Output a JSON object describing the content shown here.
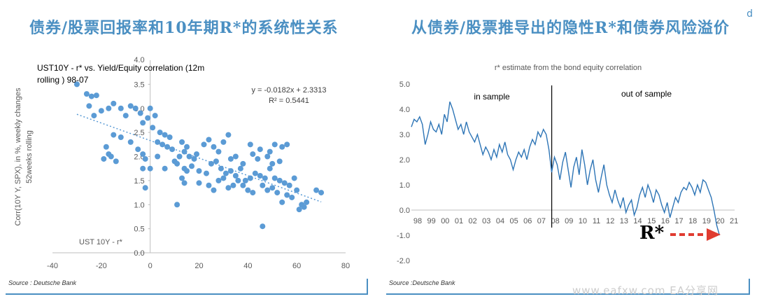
{
  "headings": {
    "left": "债券/股票回报率和10年期R*的系统性关系",
    "right": "从债券/股票推导出的隐性R*和债券风险溢价",
    "corner_mark": "d"
  },
  "sources": {
    "left": "Source : Deutsche Bank",
    "right": "Source :Deutsche Bank"
  },
  "watermark": "www.eafxw.com  EA分享网",
  "annotations": {
    "rstar_label": "R*",
    "arrow_color": "#e03c31"
  },
  "chart_data": [
    {
      "type": "scatter",
      "title": "UST10Y - r* vs. Yield/Equity correlation (12m rolling ) 98-07",
      "xlabel": "UST 10Y - r*",
      "ylabel": "Corr(10Y Y, SPX), in %, weekly changes 52weeks rolling",
      "xlim": [
        -40,
        80
      ],
      "ylim": [
        0,
        4
      ],
      "xticks": [
        -40,
        -20,
        0,
        20,
        40,
        60,
        80
      ],
      "yticks": [
        0.0,
        0.5,
        1.0,
        1.5,
        2.0,
        2.5,
        3.0,
        3.5
      ],
      "ytop_label": "4.0",
      "equation": "y = -0.0182x + 2.3313",
      "r_squared": "R² = 0.5441",
      "trendline": {
        "slope": -0.0182,
        "intercept": 2.3313,
        "x_range": [
          -30,
          70
        ]
      },
      "point_color": "#5b9bd5",
      "points": [
        [
          -30,
          3.5
        ],
        [
          -26,
          3.3
        ],
        [
          -24,
          3.25
        ],
        [
          -22,
          3.27
        ],
        [
          -25,
          3.05
        ],
        [
          -23,
          2.85
        ],
        [
          -20,
          2.95
        ],
        [
          -17,
          3.0
        ],
        [
          -15,
          3.1
        ],
        [
          -12,
          3.0
        ],
        [
          -8,
          3.05
        ],
        [
          -10,
          2.85
        ],
        [
          -6,
          3.0
        ],
        [
          -4,
          2.9
        ],
        [
          -3,
          2.7
        ],
        [
          -1,
          2.8
        ],
        [
          0,
          3.0
        ],
        [
          2,
          2.85
        ],
        [
          1,
          2.6
        ],
        [
          4,
          2.5
        ],
        [
          6,
          2.45
        ],
        [
          8,
          2.4
        ],
        [
          3,
          2.3
        ],
        [
          5,
          2.25
        ],
        [
          7,
          2.2
        ],
        [
          9,
          2.15
        ],
        [
          -15,
          2.45
        ],
        [
          -12,
          2.4
        ],
        [
          -18,
          2.2
        ],
        [
          -16,
          2.0
        ],
        [
          -19,
          1.95
        ],
        [
          -14,
          1.9
        ],
        [
          -17,
          2.05
        ],
        [
          -8,
          2.3
        ],
        [
          -5,
          2.15
        ],
        [
          -3,
          2.05
        ],
        [
          -2,
          1.95
        ],
        [
          0,
          1.75
        ],
        [
          3,
          2.0
        ],
        [
          6,
          1.75
        ],
        [
          10,
          1.9
        ],
        [
          12,
          2.0
        ],
        [
          14,
          2.1
        ],
        [
          16,
          2.0
        ],
        [
          18,
          1.95
        ],
        [
          13,
          2.3
        ],
        [
          15,
          2.2
        ],
        [
          19,
          2.05
        ],
        [
          22,
          2.25
        ],
        [
          24,
          2.35
        ],
        [
          26,
          2.2
        ],
        [
          28,
          2.1
        ],
        [
          30,
          2.3
        ],
        [
          32,
          2.45
        ],
        [
          11,
          1.85
        ],
        [
          14,
          1.75
        ],
        [
          17,
          1.8
        ],
        [
          20,
          1.7
        ],
        [
          23,
          1.65
        ],
        [
          25,
          1.85
        ],
        [
          27,
          1.9
        ],
        [
          29,
          1.75
        ],
        [
          31,
          1.65
        ],
        [
          33,
          1.7
        ],
        [
          35,
          1.6
        ],
        [
          37,
          1.75
        ],
        [
          39,
          1.5
        ],
        [
          41,
          1.55
        ],
        [
          43,
          1.65
        ],
        [
          45,
          1.6
        ],
        [
          47,
          1.55
        ],
        [
          49,
          1.75
        ],
        [
          51,
          1.55
        ],
        [
          53,
          1.5
        ],
        [
          55,
          1.45
        ],
        [
          57,
          1.4
        ],
        [
          59,
          1.55
        ],
        [
          60,
          1.3
        ],
        [
          62,
          1.0
        ],
        [
          63,
          0.95
        ],
        [
          64,
          1.05
        ],
        [
          68,
          1.3
        ],
        [
          70,
          1.25
        ],
        [
          13,
          1.55
        ],
        [
          14,
          1.45
        ],
        [
          20,
          1.45
        ],
        [
          24,
          1.4
        ],
        [
          26,
          1.3
        ],
        [
          28,
          1.5
        ],
        [
          30,
          1.55
        ],
        [
          32,
          1.35
        ],
        [
          34,
          1.4
        ],
        [
          36,
          1.5
        ],
        [
          38,
          1.4
        ],
        [
          40,
          1.3
        ],
        [
          42,
          1.25
        ],
        [
          46,
          1.4
        ],
        [
          48,
          1.3
        ],
        [
          50,
          1.35
        ],
        [
          52,
          1.25
        ],
        [
          54,
          1.05
        ],
        [
          56,
          1.2
        ],
        [
          58,
          1.15
        ],
        [
          61,
          0.9
        ],
        [
          11,
          1.0
        ],
        [
          46,
          0.55
        ],
        [
          41,
          2.25
        ],
        [
          45,
          2.15
        ],
        [
          49,
          2.1
        ],
        [
          54,
          2.2
        ],
        [
          56,
          2.25
        ],
        [
          50,
          1.85
        ],
        [
          53,
          1.9
        ],
        [
          -3,
          1.75
        ],
        [
          -2,
          1.35
        ],
        [
          15,
          1.7
        ],
        [
          35,
          2.0
        ],
        [
          42,
          2.05
        ],
        [
          44,
          1.95
        ],
        [
          48,
          2.0
        ],
        [
          51,
          2.25
        ],
        [
          38,
          1.85
        ],
        [
          33,
          1.95
        ]
      ]
    },
    {
      "type": "line",
      "title": "r* estimate from the bond equity correlation",
      "xlabel": "",
      "ylabel": "",
      "xlim": [
        1998,
        2021.5
      ],
      "ylim": [
        -2.0,
        5.0
      ],
      "yticks": [
        -2.0,
        -1.0,
        0.0,
        1.0,
        2.0,
        3.0,
        4.0,
        5.0
      ],
      "ytick_labels": [
        "-2.0",
        "-1.0",
        "0.0",
        "1.0",
        "2.0",
        "3.0",
        "4.0",
        "5.0"
      ],
      "xtick_labels": [
        "98",
        "99",
        "00",
        "01",
        "02",
        "03",
        "04",
        "05",
        "06",
        "07",
        "08",
        "09",
        "10",
        "11",
        "12",
        "13",
        "14",
        "15",
        "16",
        "17",
        "18",
        "19",
        "20",
        "21"
      ],
      "sample_split": 2008,
      "in_sample_label": "in sample",
      "out_sample_label": "out of sample",
      "line_color": "#2e75b6",
      "series": [
        {
          "x": [
            1998.0,
            1998.2,
            1998.4,
            1998.6,
            1998.8,
            1999.0,
            1999.2,
            1999.4,
            1999.6,
            1999.8,
            2000.0,
            2000.2,
            2000.4,
            2000.6,
            2000.8,
            2001.0,
            2001.2,
            2001.4,
            2001.6,
            2001.8,
            2002.0,
            2002.2,
            2002.4,
            2002.6,
            2002.8,
            2003.0,
            2003.2,
            2003.4,
            2003.6,
            2003.8,
            2004.0,
            2004.2,
            2004.4,
            2004.6,
            2004.8,
            2005.0,
            2005.2,
            2005.4,
            2005.6,
            2005.8,
            2006.0,
            2006.2,
            2006.4,
            2006.6,
            2006.8,
            2007.0,
            2007.2,
            2007.4,
            2007.6,
            2007.8,
            2008.0,
            2008.2,
            2008.4,
            2008.6,
            2008.8,
            2009.0,
            2009.2,
            2009.4,
            2009.6,
            2009.8,
            2010.0,
            2010.2,
            2010.4,
            2010.6,
            2010.8,
            2011.0,
            2011.2,
            2011.4,
            2011.6,
            2011.8,
            2012.0,
            2012.2,
            2012.4,
            2012.6,
            2012.8,
            2013.0,
            2013.2,
            2013.4,
            2013.6,
            2013.8,
            2014.0,
            2014.2,
            2014.4,
            2014.6,
            2014.8,
            2015.0,
            2015.2,
            2015.4,
            2015.6,
            2015.8,
            2016.0,
            2016.2,
            2016.4,
            2016.6,
            2016.8,
            2017.0,
            2017.2,
            2017.4,
            2017.6,
            2017.8,
            2018.0,
            2018.2,
            2018.4,
            2018.6,
            2018.8,
            2019.0,
            2019.2,
            2019.4,
            2019.6,
            2019.8,
            2020.0,
            2020.2,
            2020.4
          ],
          "values": [
            3.3,
            3.6,
            3.5,
            3.7,
            3.4,
            2.6,
            3.0,
            3.5,
            3.2,
            3.1,
            3.4,
            3.0,
            3.8,
            3.5,
            4.3,
            4.0,
            3.6,
            3.2,
            3.4,
            3.0,
            3.5,
            3.1,
            2.9,
            2.7,
            3.0,
            2.6,
            2.2,
            2.5,
            2.3,
            2.0,
            2.4,
            2.1,
            2.6,
            2.3,
            2.7,
            2.2,
            2.0,
            1.6,
            2.0,
            2.3,
            2.1,
            2.4,
            2.0,
            2.5,
            2.8,
            2.6,
            3.1,
            2.9,
            3.2,
            3.0,
            2.4,
            1.5,
            2.1,
            1.8,
            1.2,
            1.9,
            2.3,
            1.6,
            0.9,
            1.7,
            2.1,
            1.4,
            2.4,
            1.8,
            1.0,
            1.6,
            2.0,
            1.2,
            0.7,
            1.3,
            1.8,
            1.0,
            0.6,
            0.3,
            0.8,
            0.4,
            0.1,
            0.5,
            -0.1,
            0.2,
            0.4,
            -0.2,
            0.1,
            0.6,
            0.9,
            0.5,
            1.0,
            0.7,
            0.3,
            0.8,
            0.6,
            0.2,
            -0.1,
            0.3,
            -0.3,
            0.1,
            0.5,
            0.3,
            0.7,
            0.9,
            0.8,
            1.1,
            0.9,
            0.6,
            1.0,
            0.7,
            1.2,
            1.1,
            0.8,
            0.5,
            0.0,
            -0.6,
            -1.0
          ]
        }
      ]
    }
  ]
}
